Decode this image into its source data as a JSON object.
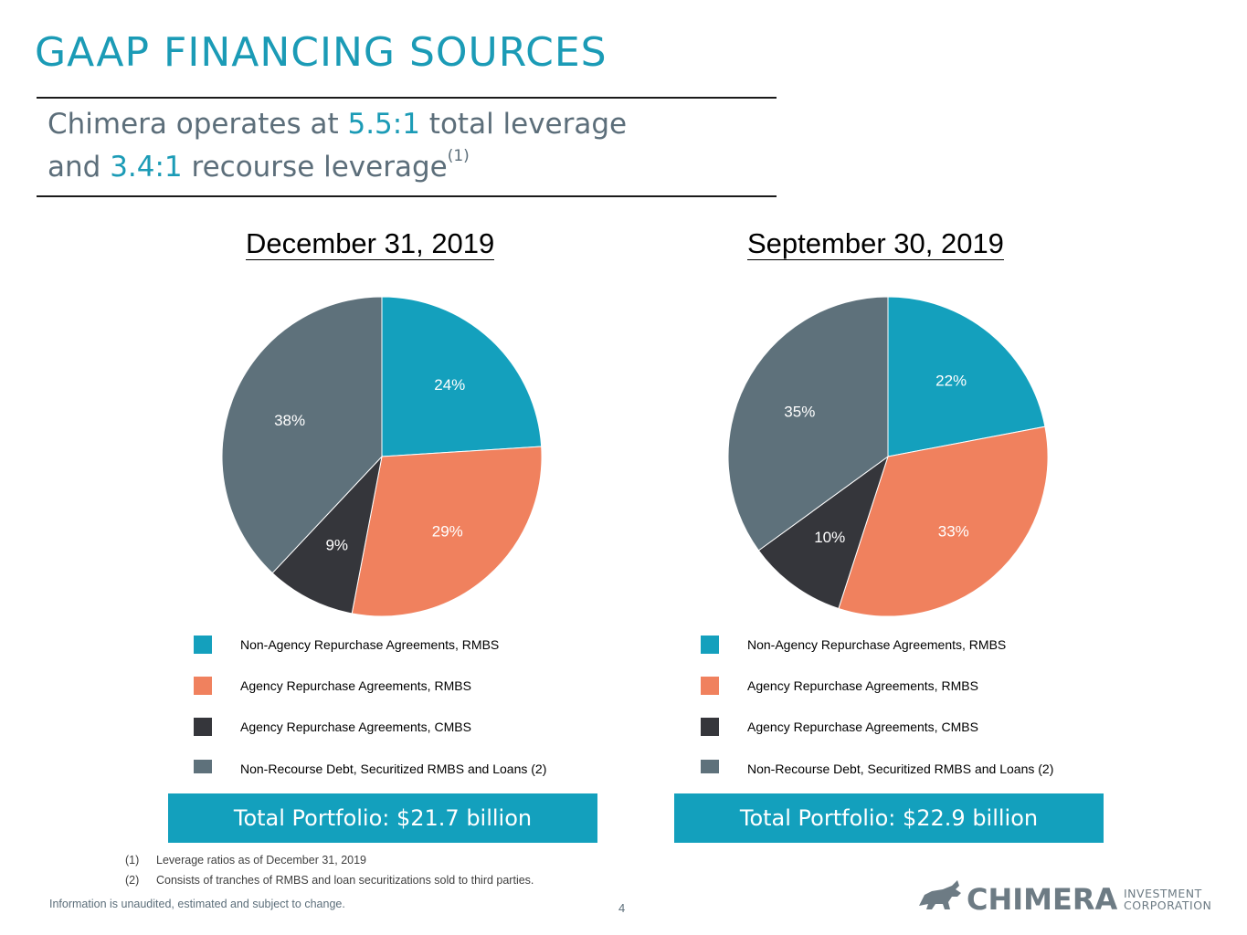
{
  "title": "GAAP FINANCING SOURCES",
  "subtitle": {
    "line1_pre": "Chimera operates at ",
    "line1_hl": "5.5:1",
    "line1_post": " total leverage",
    "line2_pre": "and ",
    "line2_hl": "3.4:1",
    "line2_post": " recourse leverage",
    "line2_sup": "(1)"
  },
  "colors": {
    "non_agency_rmbs": "#14a0bd",
    "agency_rmbs": "#f0815e",
    "agency_cmbs": "#35363b",
    "non_recourse": "#5e717b",
    "accent": "#1b9bb6"
  },
  "chart_data": [
    {
      "type": "pie",
      "title": "December 31, 2019",
      "labels": [
        "Non-Agency Repurchase Agreements, RMBS",
        "Agency Repurchase Agreements, RMBS",
        "Agency Repurchase Agreements, CMBS",
        "Non-Recourse Debt, Securitized RMBS and Loans (2)"
      ],
      "values": [
        24,
        29,
        9,
        38
      ],
      "value_labels": [
        "24%",
        "29%",
        "9%",
        "38%"
      ],
      "legend_position": "bottom",
      "total": "Total Portfolio: $21.7 billion"
    },
    {
      "type": "pie",
      "title": "September 30, 2019",
      "labels": [
        "Non-Agency Repurchase Agreements, RMBS",
        "Agency Repurchase Agreements, RMBS",
        "Agency Repurchase Agreements, CMBS",
        "Non-Recourse Debt, Securitized RMBS and Loans (2)"
      ],
      "values": [
        22,
        33,
        10,
        35
      ],
      "value_labels": [
        "22%",
        "33%",
        "10%",
        "35%"
      ],
      "legend_position": "bottom",
      "total": "Total Portfolio: $22.9 billion"
    }
  ],
  "footnotes": [
    {
      "num": "(1)",
      "text": "Leverage ratios as of December 31, 2019"
    },
    {
      "num": "(2)",
      "text": "Consists of tranches of RMBS and loan securitizations sold to third parties."
    }
  ],
  "disclaimer": "Information is unaudited, estimated and subject to change.",
  "page_number": "4",
  "logo": {
    "word": "CHIMERA",
    "line1": "INVESTMENT",
    "line2": "CORPORATION"
  }
}
